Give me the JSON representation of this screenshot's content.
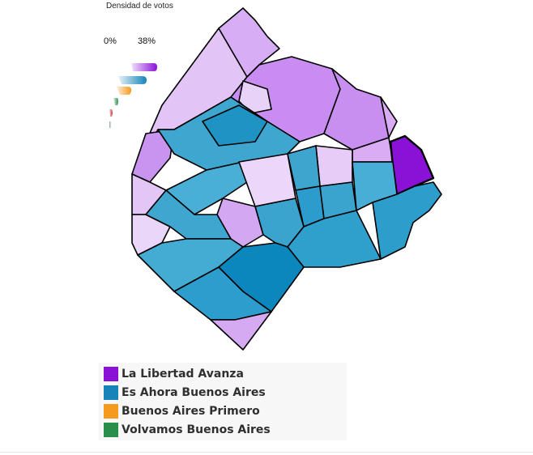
{
  "density_legend": {
    "title": "Densidad de votos",
    "min_label": "0%",
    "max_label": "38%"
  },
  "map": {
    "region": "Ciudad de Buenos Aires",
    "winner_colors": {
      "la_libertad_avanza": "#8a12d6",
      "es_ahora_buenos_aires": "#1684b8",
      "buenos_aires_primero": "#f59a1c",
      "volvamos_buenos_aires": "#2a8e4b"
    },
    "shade_levels": [
      "very-light",
      "light",
      "medium",
      "strong"
    ]
  },
  "legend": {
    "items": [
      {
        "label": "La Libertad Avanza",
        "color": "#8a12d6"
      },
      {
        "label": "Es Ahora Buenos Aires",
        "color": "#1684b8"
      },
      {
        "label": "Buenos Aires Primero",
        "color": "#f59a1c"
      },
      {
        "label": "Volvamos Buenos Aires",
        "color": "#2a8e4b"
      }
    ]
  }
}
